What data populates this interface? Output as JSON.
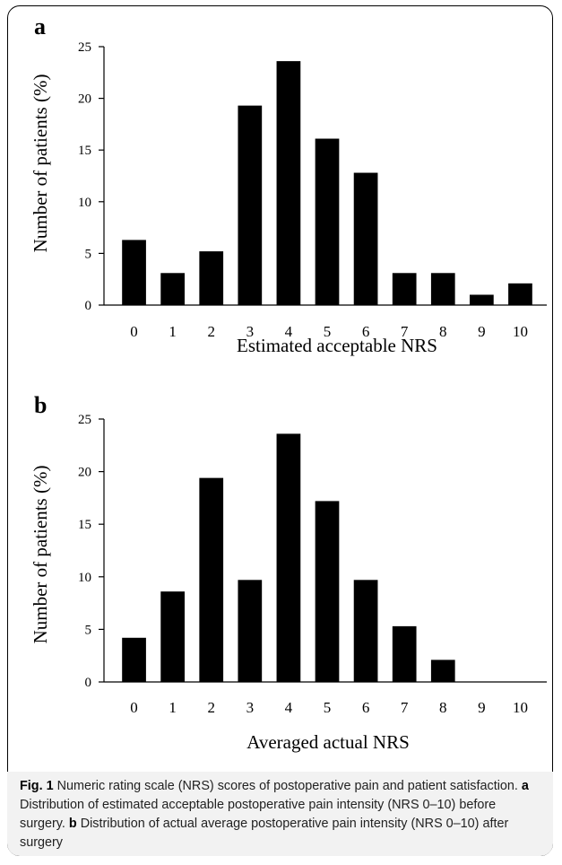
{
  "chart_data": [
    {
      "type": "bar",
      "panel": "a",
      "categories": [
        "0",
        "1",
        "2",
        "3",
        "4",
        "5",
        "6",
        "7",
        "8",
        "9",
        "10"
      ],
      "values": [
        6.3,
        3.1,
        5.2,
        19.3,
        23.6,
        16.1,
        12.8,
        3.1,
        3.1,
        1.0,
        2.1
      ],
      "xlabel": "Estimated acceptable NRS",
      "ylabel": "Number of patients (%)",
      "ylim": [
        0,
        25
      ],
      "yticks": [
        0,
        5,
        10,
        15,
        20,
        25
      ],
      "grid": false,
      "bar_color": "#000000"
    },
    {
      "type": "bar",
      "panel": "b",
      "categories": [
        "0",
        "1",
        "2",
        "3",
        "4",
        "5",
        "6",
        "7",
        "8",
        "9",
        "10"
      ],
      "values": [
        4.2,
        8.6,
        19.4,
        9.7,
        23.6,
        17.2,
        9.7,
        5.3,
        2.1,
        0,
        0
      ],
      "xlabel": "Averaged actual NRS",
      "ylabel": "Number of patients (%)",
      "ylim": [
        0,
        25
      ],
      "yticks": [
        0,
        5,
        10,
        15,
        20,
        25
      ],
      "grid": false,
      "bar_color": "#000000"
    }
  ],
  "caption": {
    "fig_label": "Fig. 1",
    "intro": "Numeric rating scale (NRS) scores of postoperative pain and patient satisfaction.",
    "a_label": "a",
    "a_text": "Distribution of estimated acceptable postoperative pain intensity (NRS 0–10) before surgery.",
    "b_label": "b",
    "b_text": "Distribution of actual average postoperative pain intensity (NRS 0–10) after surgery"
  }
}
